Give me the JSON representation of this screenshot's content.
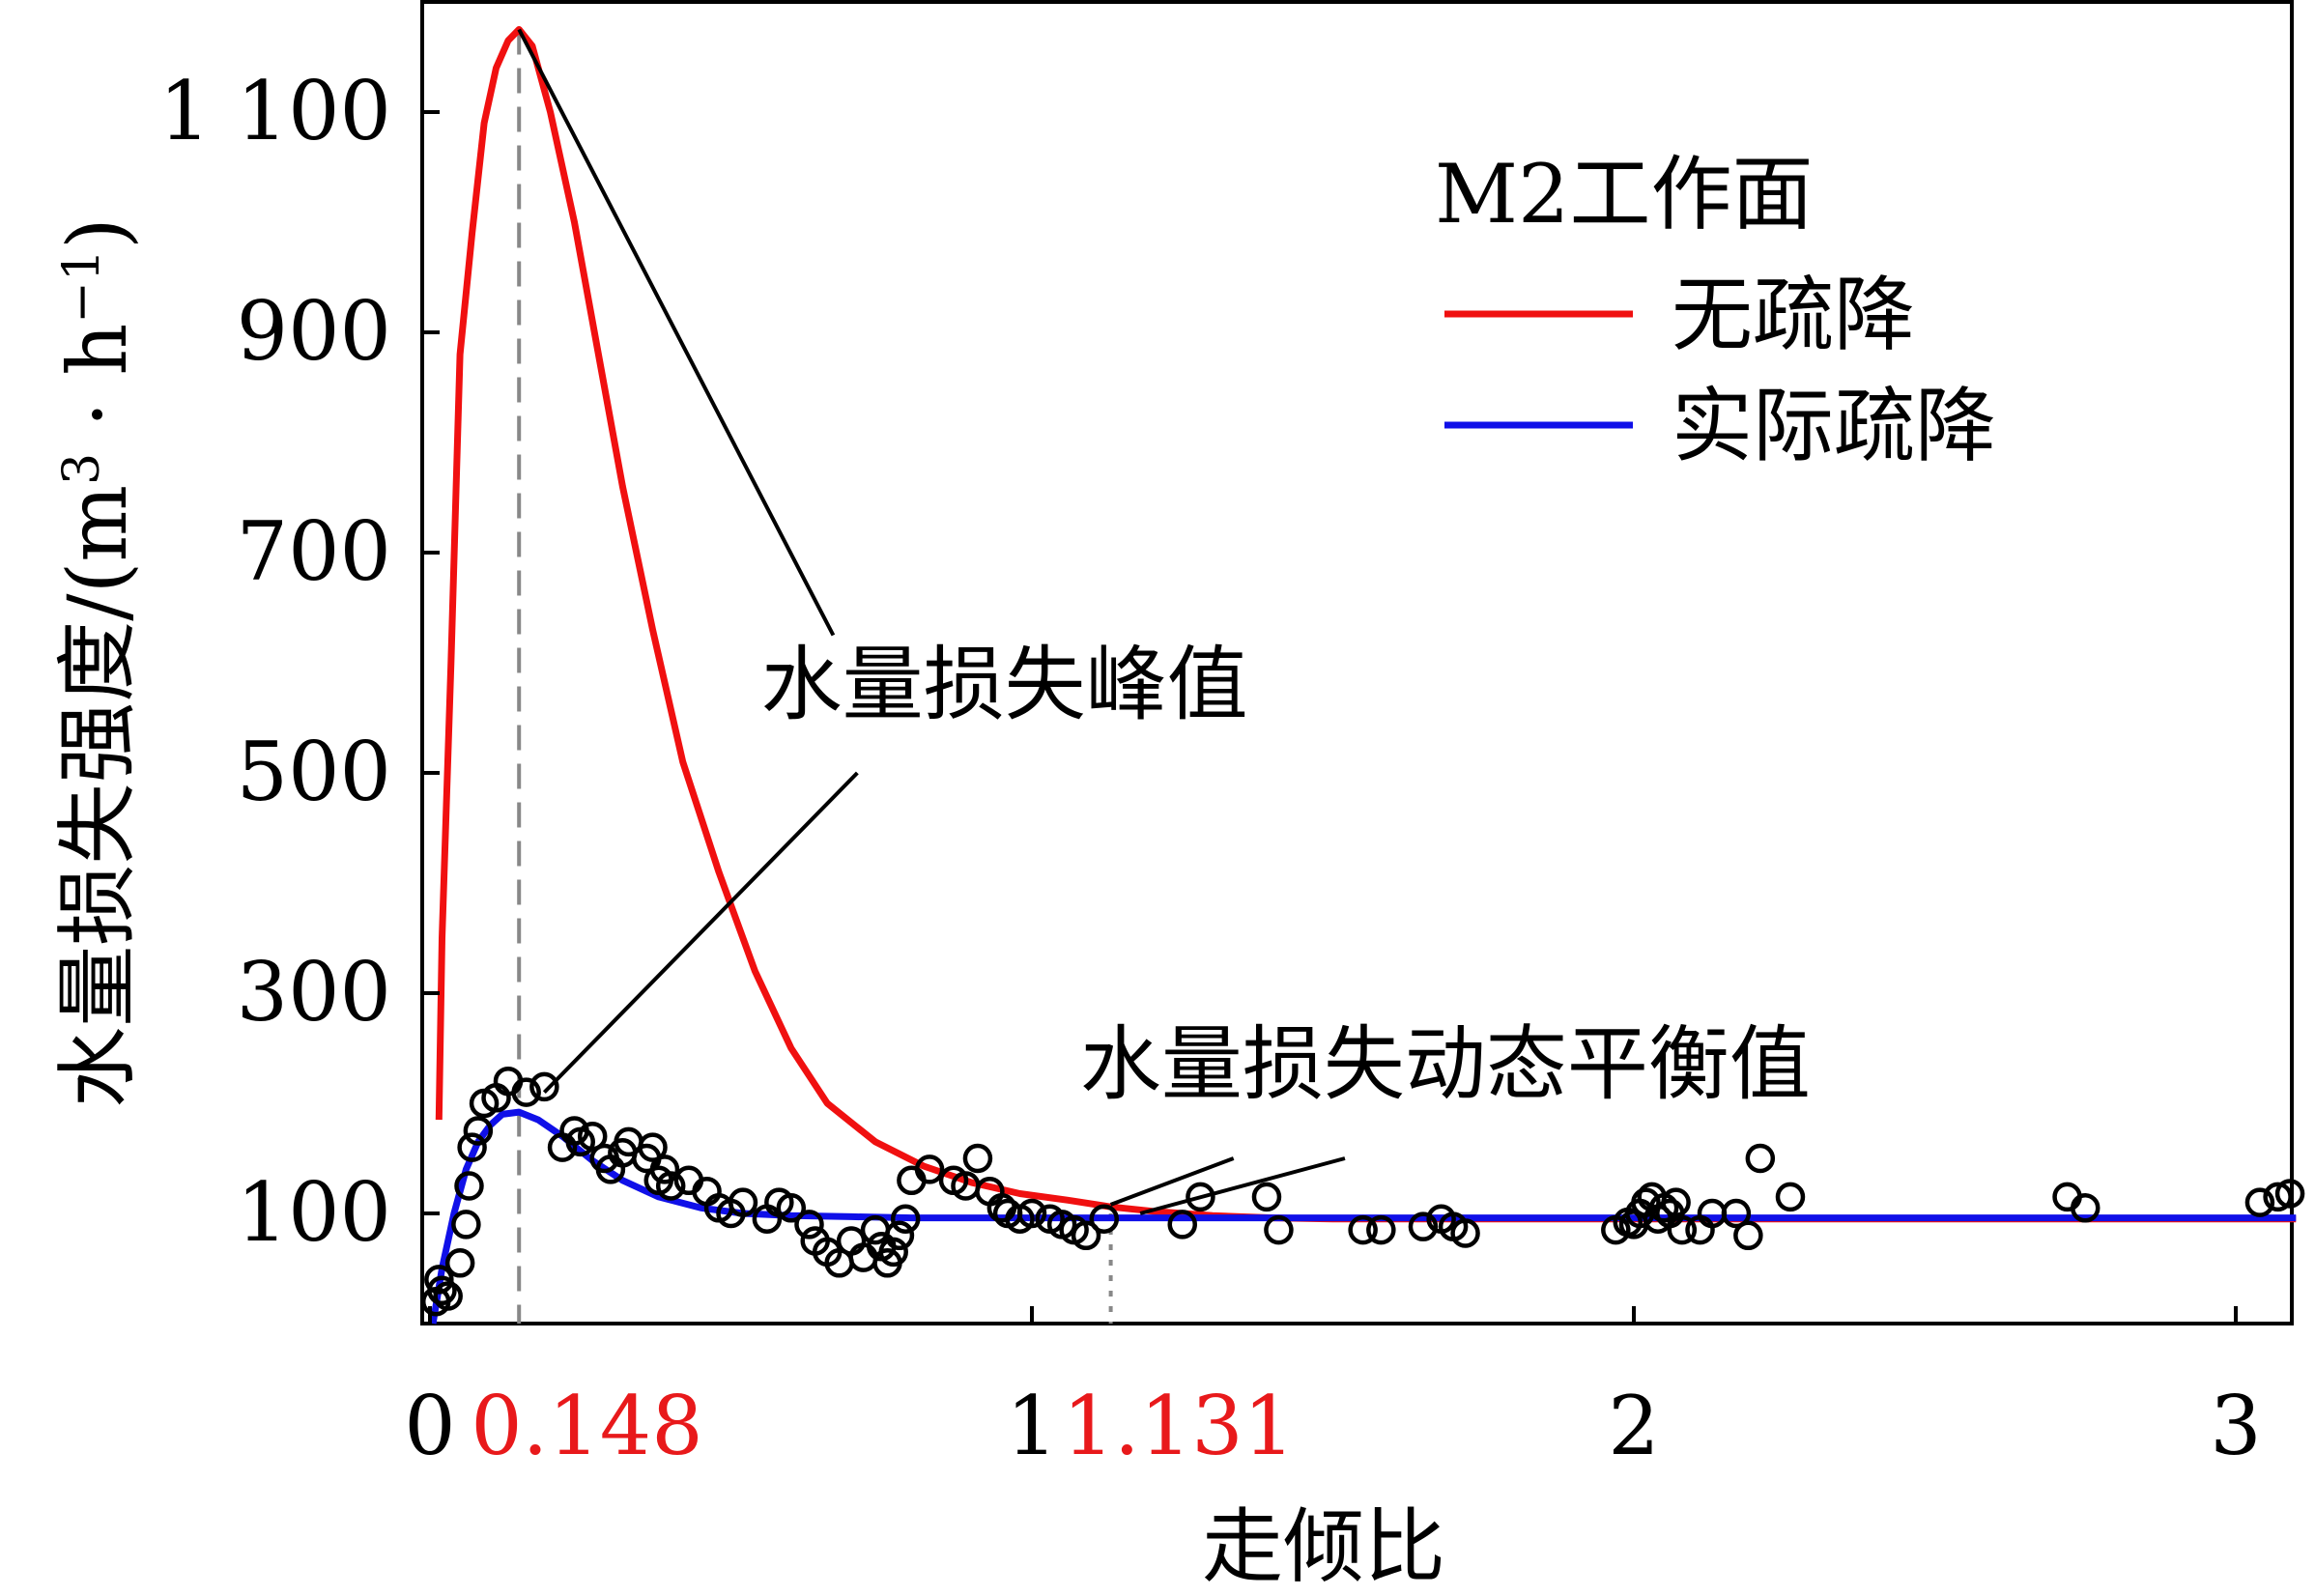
{
  "chart_data": {
    "type": "line",
    "title": "",
    "xlabel": "走倾比",
    "ylabel": "水量损失强度/(m³·h⁻¹)",
    "ylabel_parts": {
      "prefix": "水量损失强度/(m",
      "sup1": "3",
      "mid": " · h",
      "sup2": "−1",
      "suffix": ")"
    },
    "xlim": [
      0,
      3.1
    ],
    "ylim": [
      0,
      1200
    ],
    "xticks": [
      {
        "value": 0,
        "label": "0"
      },
      {
        "value": 1,
        "label": "1"
      },
      {
        "value": 2,
        "label": "2"
      },
      {
        "value": 3,
        "label": "3"
      }
    ],
    "yticks": [
      {
        "value": 100,
        "label": "100"
      },
      {
        "value": 300,
        "label": "300"
      },
      {
        "value": 500,
        "label": "500"
      },
      {
        "value": 700,
        "label": "700"
      },
      {
        "value": 900,
        "label": "900"
      },
      {
        "value": 1100,
        "label": "1 100"
      }
    ],
    "highlight_ticks": [
      {
        "value": 0.148,
        "label": "0.148",
        "color": "#e8191b"
      },
      {
        "value": 1.131,
        "label": "1.131",
        "color": "#e8191b"
      }
    ],
    "grid": false,
    "legend": {
      "title": "M2工作面",
      "placement": "top-right",
      "entries": [
        {
          "label": "无疏降",
          "color": "#f01010"
        },
        {
          "label": "实际疏降",
          "color": "#1010e8"
        }
      ]
    },
    "series": [
      {
        "name": "无疏降",
        "color": "#f01010",
        "x": [
          0.015,
          0.02,
          0.035,
          0.05,
          0.07,
          0.09,
          0.11,
          0.13,
          0.148,
          0.17,
          0.2,
          0.24,
          0.28,
          0.32,
          0.37,
          0.42,
          0.48,
          0.54,
          0.6,
          0.66,
          0.74,
          0.82,
          0.9,
          0.98,
          1.06,
          1.131,
          1.2,
          1.3,
          1.4,
          1.5,
          1.7,
          2.0,
          2.5,
          3.0,
          3.1
        ],
        "y": [
          185,
          350,
          600,
          880,
          990,
          1090,
          1140,
          1165,
          1175,
          1160,
          1100,
          1000,
          880,
          760,
          630,
          510,
          410,
          320,
          250,
          200,
          165,
          143,
          128,
          118,
          112,
          106,
          102,
          98,
          96,
          95,
          95,
          95,
          95,
          95,
          95
        ]
      },
      {
        "name": "实际疏降",
        "color": "#1010e8",
        "x": [
          0.005,
          0.02,
          0.04,
          0.06,
          0.08,
          0.1,
          0.12,
          0.148,
          0.18,
          0.22,
          0.27,
          0.32,
          0.38,
          0.45,
          0.52,
          0.6,
          0.7,
          0.8,
          0.9,
          1.0,
          1.131,
          1.3,
          1.5,
          2.0,
          2.5,
          3.0,
          3.1
        ],
        "y": [
          0,
          50,
          100,
          140,
          165,
          180,
          190,
          192,
          185,
          170,
          148,
          130,
          115,
          105,
          100,
          98,
          97,
          96,
          96,
          96,
          96,
          96,
          96,
          96,
          96,
          96,
          96
        ]
      },
      {
        "name": "",
        "type": "scatter",
        "color": "#000000",
        "points": [
          [
            0.01,
            20
          ],
          [
            0.015,
            40
          ],
          [
            0.02,
            30
          ],
          [
            0.03,
            25
          ],
          [
            0.05,
            55
          ],
          [
            0.06,
            90
          ],
          [
            0.065,
            125
          ],
          [
            0.07,
            160
          ],
          [
            0.08,
            175
          ],
          [
            0.09,
            200
          ],
          [
            0.11,
            205
          ],
          [
            0.13,
            220
          ],
          [
            0.16,
            210
          ],
          [
            0.19,
            215
          ],
          [
            0.22,
            160
          ],
          [
            0.24,
            175
          ],
          [
            0.25,
            165
          ],
          [
            0.27,
            170
          ],
          [
            0.29,
            150
          ],
          [
            0.3,
            140
          ],
          [
            0.32,
            155
          ],
          [
            0.33,
            165
          ],
          [
            0.36,
            150
          ],
          [
            0.37,
            160
          ],
          [
            0.38,
            130
          ],
          [
            0.39,
            140
          ],
          [
            0.4,
            125
          ],
          [
            0.43,
            130
          ],
          [
            0.46,
            120
          ],
          [
            0.48,
            105
          ],
          [
            0.5,
            100
          ],
          [
            0.52,
            110
          ],
          [
            0.56,
            95
          ],
          [
            0.58,
            110
          ],
          [
            0.6,
            105
          ],
          [
            0.63,
            90
          ],
          [
            0.64,
            75
          ],
          [
            0.66,
            65
          ],
          [
            0.68,
            55
          ],
          [
            0.7,
            75
          ],
          [
            0.72,
            60
          ],
          [
            0.74,
            85
          ],
          [
            0.75,
            70
          ],
          [
            0.76,
            55
          ],
          [
            0.77,
            65
          ],
          [
            0.78,
            80
          ],
          [
            0.79,
            95
          ],
          [
            0.8,
            130
          ],
          [
            0.83,
            140
          ],
          [
            0.87,
            130
          ],
          [
            0.89,
            125
          ],
          [
            0.91,
            150
          ],
          [
            0.93,
            120
          ],
          [
            0.95,
            105
          ],
          [
            0.96,
            100
          ],
          [
            0.98,
            95
          ],
          [
            1.0,
            100
          ],
          [
            1.03,
            95
          ],
          [
            1.05,
            90
          ],
          [
            1.07,
            85
          ],
          [
            1.09,
            80
          ],
          [
            1.12,
            95
          ],
          [
            1.25,
            90
          ],
          [
            1.28,
            115
          ],
          [
            1.39,
            115
          ],
          [
            1.41,
            85
          ],
          [
            1.55,
            85
          ],
          [
            1.58,
            85
          ],
          [
            1.65,
            88
          ],
          [
            1.68,
            95
          ],
          [
            1.7,
            88
          ],
          [
            1.72,
            82
          ],
          [
            1.97,
            85
          ],
          [
            1.99,
            92
          ],
          [
            2.0,
            90
          ],
          [
            2.01,
            100
          ],
          [
            2.02,
            110
          ],
          [
            2.03,
            115
          ],
          [
            2.04,
            95
          ],
          [
            2.05,
            105
          ],
          [
            2.06,
            100
          ],
          [
            2.07,
            110
          ],
          [
            2.08,
            85
          ],
          [
            2.11,
            85
          ],
          [
            2.13,
            100
          ],
          [
            2.17,
            100
          ],
          [
            2.19,
            80
          ],
          [
            2.21,
            150
          ],
          [
            2.26,
            115
          ],
          [
            2.72,
            115
          ],
          [
            2.75,
            105
          ],
          [
            3.04,
            110
          ],
          [
            3.07,
            115
          ],
          [
            3.09,
            118
          ]
        ]
      }
    ],
    "annotations": [
      {
        "text": "水量损失峰值",
        "x": 0.55,
        "y": 555,
        "pointers": [
          {
            "from": [
              0.67,
              625
            ],
            "to": [
              0.148,
              1175
            ]
          },
          {
            "from": [
              0.71,
              500
            ],
            "to": [
              0.19,
              210
            ]
          }
        ]
      },
      {
        "text": "水量损失动态平衡值",
        "x": 1.08,
        "y": 210,
        "pointers": [
          {
            "from": [
              1.335,
              150
            ],
            "to": [
              1.131,
              108
            ]
          },
          {
            "from": [
              1.52,
              150
            ],
            "to": [
              1.18,
              100
            ]
          }
        ]
      }
    ],
    "reference_lines": [
      {
        "axis": "x",
        "value": 0.148,
        "style": "dashed",
        "color": "#888888",
        "y_to": 1175
      },
      {
        "axis": "x",
        "value": 1.131,
        "style": "dotted",
        "color": "#888888",
        "y_to": 100
      }
    ]
  }
}
